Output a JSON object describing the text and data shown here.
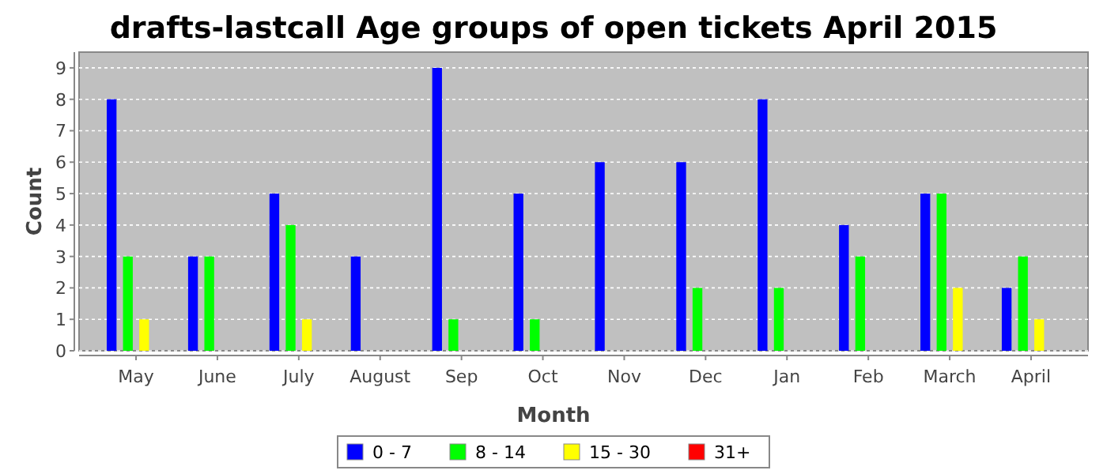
{
  "chart_data": {
    "type": "bar",
    "title": "drafts-lastcall Age groups of open tickets April 2015",
    "xlabel": "Month",
    "ylabel": "Count",
    "categories": [
      "May",
      "June",
      "July",
      "August",
      "Sep",
      "Oct",
      "Nov",
      "Dec",
      "Jan",
      "Feb",
      "March",
      "April"
    ],
    "series": [
      {
        "name": "0 - 7",
        "color": "#0000ff",
        "values": [
          8,
          3,
          5,
          3,
          9,
          5,
          6,
          6,
          8,
          4,
          5,
          2
        ]
      },
      {
        "name": "8 - 14",
        "color": "#00ff00",
        "values": [
          3,
          3,
          4,
          0,
          1,
          1,
          0,
          2,
          2,
          3,
          5,
          3
        ]
      },
      {
        "name": "15 - 30",
        "color": "#ffff00",
        "values": [
          1,
          0,
          1,
          0,
          0,
          0,
          0,
          0,
          0,
          0,
          2,
          1
        ]
      },
      {
        "name": "31+",
        "color": "#ff0000",
        "values": [
          0,
          0,
          0,
          0,
          0,
          0,
          0,
          0,
          0,
          0,
          0,
          0
        ]
      }
    ],
    "ylim": [
      0,
      9.5
    ],
    "yticks": [
      0,
      1,
      2,
      3,
      4,
      5,
      6,
      7,
      8,
      9
    ],
    "grid": "y",
    "legend": "bottom"
  }
}
